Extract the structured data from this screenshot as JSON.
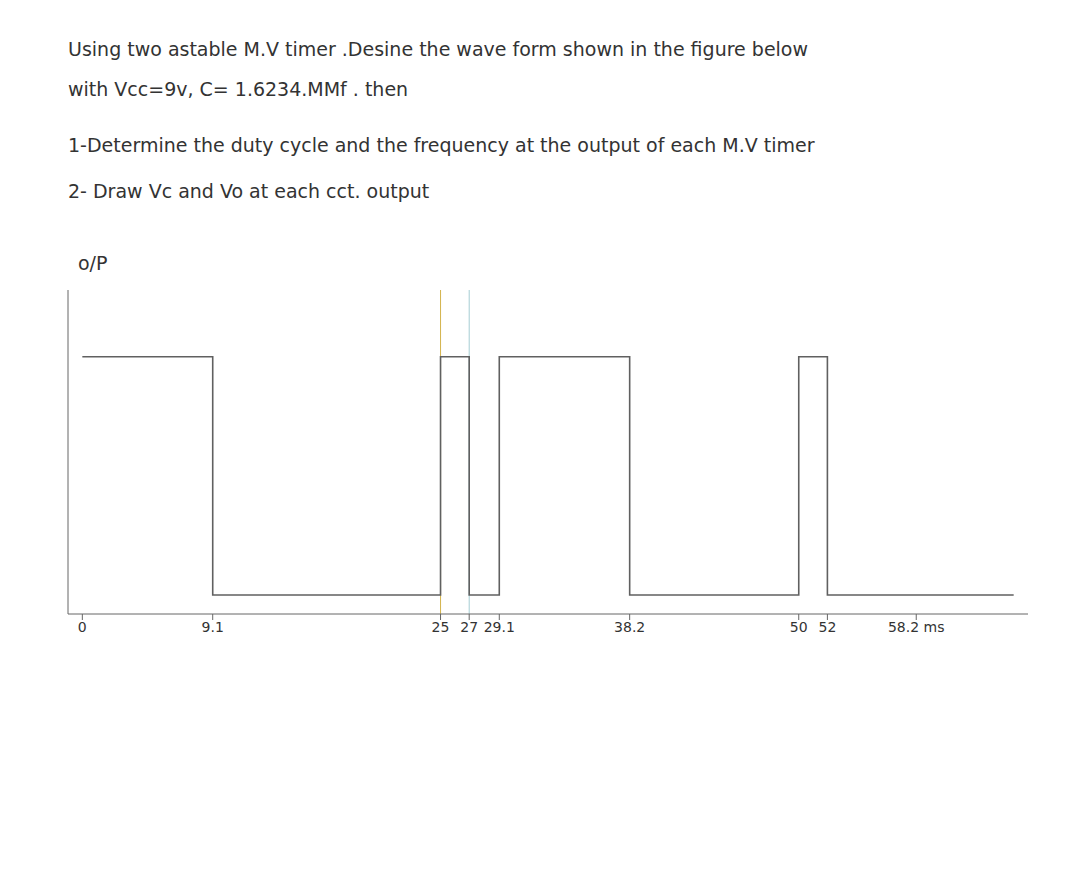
{
  "chart_data": {
    "type": "line",
    "title": "Using two astable M.V timer .Desine the wave form shown in the figure below",
    "subtitle": "with Vcc=9v, C= 1.6234.ΜMf . then",
    "annotations": [
      "1-Determine the duty cycle and the frequency at the output of each M.V timer",
      "2- Draw Vc and Vo at each cct. output"
    ],
    "ylabel": "o/P",
    "x": [
      0,
      9.1,
      9.1,
      25,
      25,
      27,
      27,
      29.1,
      29.1,
      38.2,
      38.2,
      50,
      50,
      52,
      52,
      65
    ],
    "values": [
      1,
      1,
      0,
      0,
      1,
      1,
      0,
      0,
      1,
      1,
      0,
      0,
      1,
      1,
      0,
      0
    ],
    "color": "#606060",
    "vlines": [
      {
        "x": 25,
        "color": "#c8a020"
      },
      {
        "x": 27,
        "color": "#90c0c8"
      }
    ],
    "xlim": [
      -1,
      66
    ],
    "ylim": [
      -0.08,
      1.28
    ],
    "xticks": [
      0,
      9.1,
      25,
      27,
      29.1,
      38.2,
      50,
      52,
      {
        "value": 58.2,
        "label": "58.2 ms"
      }
    ],
    "yticks": [],
    "tick_labels": "x",
    "grid": false
  }
}
